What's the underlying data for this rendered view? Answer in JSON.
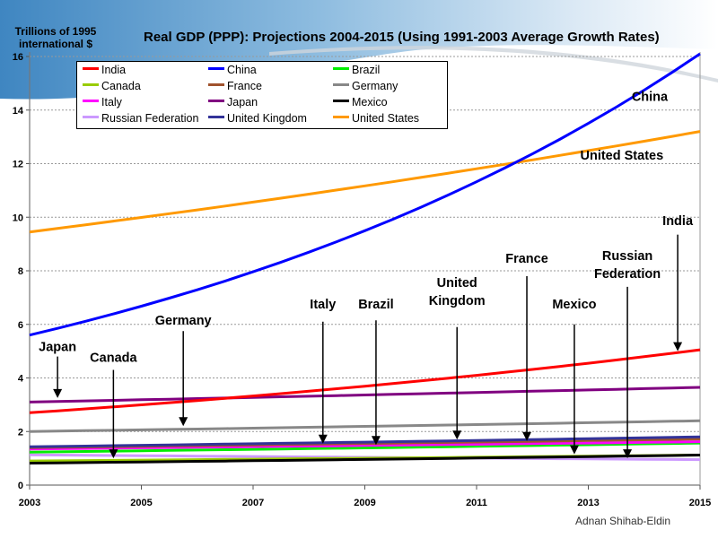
{
  "chart_data": {
    "type": "line",
    "title": "Real GDP (PPP):  Projections 2004-2015 (Using 1991-2003 Average Growth Rates)",
    "ylabel_line1": "Trillions of 1995",
    "ylabel_line2": "international $",
    "xlabel": "",
    "x": [
      2003,
      2015
    ],
    "xticks": [
      "2003",
      "2005",
      "2007",
      "2009",
      "2011",
      "2013",
      "2015"
    ],
    "yticks": [
      "0",
      "2",
      "4",
      "6",
      "8",
      "10",
      "12",
      "14",
      "16"
    ],
    "xlim": [
      2003,
      2015
    ],
    "ylim": [
      0,
      16
    ],
    "grid": "horizontal-dotted",
    "legend_position": "top-left",
    "series": [
      {
        "name": "India",
        "color": "#ff0000",
        "start": 2.7,
        "end": 5.05,
        "curve": "growth"
      },
      {
        "name": "China",
        "color": "#0000ff",
        "start": 5.6,
        "end": 16.1,
        "curve": "growth"
      },
      {
        "name": "Brazil",
        "color": "#00ee00",
        "start": 1.23,
        "end": 1.57,
        "curve": "growth"
      },
      {
        "name": "Canada",
        "color": "#99cc00",
        "start": 0.9,
        "end": 1.12,
        "curve": "growth"
      },
      {
        "name": "France",
        "color": "#a0522d",
        "start": 1.4,
        "end": 1.72,
        "curve": "growth"
      },
      {
        "name": "Germany",
        "color": "#888888",
        "start": 2.0,
        "end": 2.4,
        "curve": "growth"
      },
      {
        "name": "Italy",
        "color": "#ff00ff",
        "start": 1.35,
        "end": 1.62,
        "curve": "growth"
      },
      {
        "name": "Japan",
        "color": "#800080",
        "start": 3.1,
        "end": 3.65,
        "curve": "growth"
      },
      {
        "name": "Mexico",
        "color": "#000000",
        "start": 0.82,
        "end": 1.12,
        "curve": "growth"
      },
      {
        "name": "Russian Federation",
        "color": "#cc99ff",
        "start": 1.13,
        "end": 0.95,
        "curve": "growth"
      },
      {
        "name": "United Kingdom",
        "color": "#333399",
        "start": 1.43,
        "end": 1.8,
        "curve": "growth"
      },
      {
        "name": "United States",
        "color": "#ff9900",
        "start": 9.45,
        "end": 13.2,
        "curve": "growth"
      }
    ],
    "annotations": [
      {
        "label": [
          "China"
        ],
        "text_x": 2014.1,
        "text_y": 14.35,
        "arrow": null
      },
      {
        "label": [
          "United States"
        ],
        "text_x": 2013.6,
        "text_y": 12.15,
        "arrow": null
      },
      {
        "label": [
          "India"
        ],
        "text_x": 2014.6,
        "text_y": 9.7,
        "arrow": {
          "x": 2014.6,
          "from": 9.35,
          "to": 5.0
        }
      },
      {
        "label": [
          "Russian",
          "Federation"
        ],
        "text_x": 2013.7,
        "text_y": 8.4,
        "arrow": {
          "x": 2013.7,
          "from": 7.4,
          "to": 1.0
        }
      },
      {
        "label": [
          "France"
        ],
        "text_x": 2011.9,
        "text_y": 8.3,
        "arrow": {
          "x": 2011.9,
          "from": 7.8,
          "to": 1.65
        }
      },
      {
        "label": [
          "United",
          "Kingdom"
        ],
        "text_x": 2010.65,
        "text_y": 7.4,
        "arrow": {
          "x": 2010.65,
          "from": 5.9,
          "to": 1.7
        }
      },
      {
        "label": [
          "Mexico"
        ],
        "text_x": 2012.75,
        "text_y": 6.6,
        "arrow": {
          "x": 2012.75,
          "from": 6.0,
          "to": 1.15
        }
      },
      {
        "label": [
          "Brazil"
        ],
        "text_x": 2009.2,
        "text_y": 6.6,
        "arrow": {
          "x": 2009.2,
          "from": 6.15,
          "to": 1.5
        }
      },
      {
        "label": [
          "Italy"
        ],
        "text_x": 2008.25,
        "text_y": 6.6,
        "arrow": {
          "x": 2008.25,
          "from": 6.1,
          "to": 1.55
        }
      },
      {
        "label": [
          "Germany"
        ],
        "text_x": 2005.75,
        "text_y": 6.0,
        "arrow": {
          "x": 2005.75,
          "from": 5.75,
          "to": 2.2
        }
      },
      {
        "label": [
          "Canada"
        ],
        "text_x": 2004.5,
        "text_y": 4.6,
        "arrow": {
          "x": 2004.5,
          "from": 4.3,
          "to": 1.0
        }
      },
      {
        "label": [
          "Japan"
        ],
        "text_x": 2003.5,
        "text_y": 5.0,
        "arrow": {
          "x": 2003.5,
          "from": 4.8,
          "to": 3.25
        }
      }
    ]
  },
  "footer": {
    "credit": "Adnan Shihab-Eldin"
  }
}
